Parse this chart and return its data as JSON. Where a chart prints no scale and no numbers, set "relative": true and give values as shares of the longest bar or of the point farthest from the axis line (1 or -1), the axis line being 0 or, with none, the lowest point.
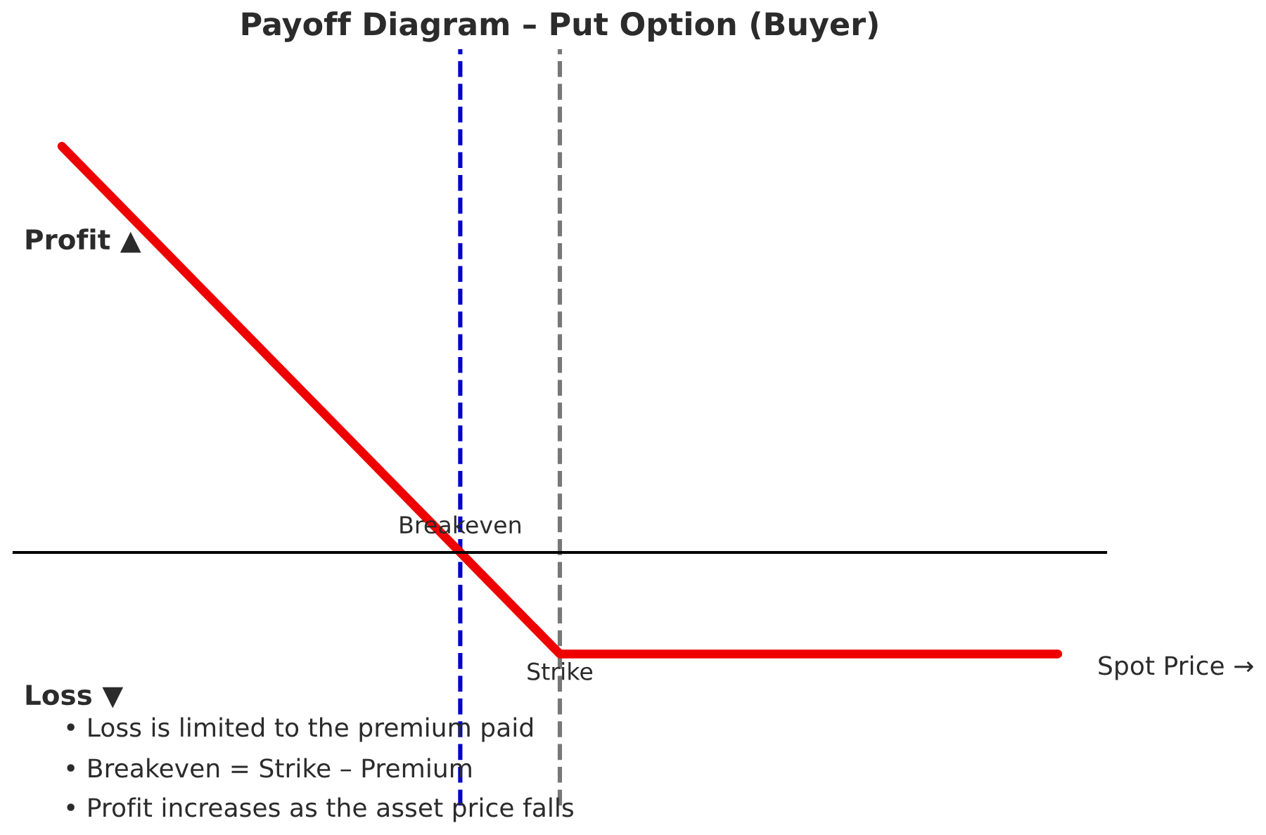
{
  "chart_data": {
    "type": "line",
    "title": "Payoff Diagram – Put Option (Buyer)",
    "categories": [
      null,
      null,
      null
    ],
    "values": [
      1,
      -0.25,
      -0.25
    ],
    "color": "#ee0000",
    "relative": true,
    "annotations": [
      "Profit ▲",
      {
        "text": "Breakeven",
        "y": 0
      },
      {
        "text": "Strike",
        "y": -0.25
      },
      "Loss ▼",
      "Spot Price →",
      "• Loss is limited to the premium paid",
      "• Breakeven = Strike – Premium",
      "• Profit increases as the asset price falls"
    ]
  }
}
